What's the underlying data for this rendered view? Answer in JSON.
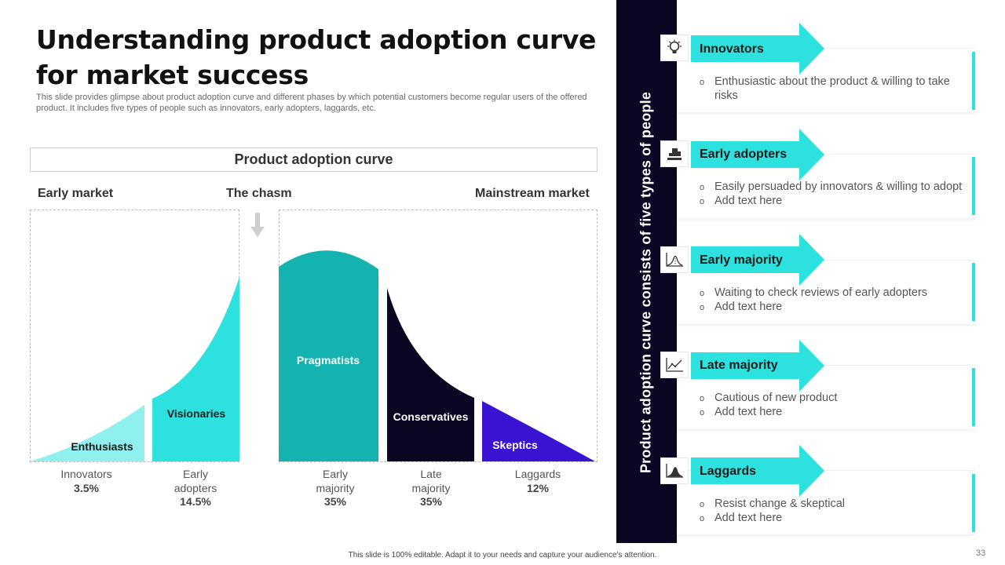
{
  "title": "Understanding product adoption curve for market success",
  "subtitle": "This slide provides glimpse about product adoption curve and different phases by which potential customers become regular users of the offered product. It includes five types of people such as innovators, early adopters, laggards, etc.",
  "diagram": {
    "header": "Product adoption curve",
    "markets": {
      "early": "Early market",
      "chasm": "The chasm",
      "mainstream": "Mainstream market"
    },
    "segments": [
      {
        "label": "Enthusiasts",
        "category": "Innovators",
        "percent": "3.5%",
        "color": "#8ff0ee"
      },
      {
        "label": "Visionaries",
        "category": "Early adopters",
        "percent": "14.5%",
        "color": "#2de2de"
      },
      {
        "label": "Pragmatists",
        "category": "Early majority",
        "percent": "35%",
        "color": "#15b3af"
      },
      {
        "label": "Conservatives",
        "category": "Late majority",
        "percent": "35%",
        "color": "#0b0622"
      },
      {
        "label": "Skeptics",
        "category": "Laggards",
        "percent": "12%",
        "color": "#3a12d2"
      }
    ]
  },
  "sidebar": {
    "text": "Product adoption curve consists of five types of people"
  },
  "cards": [
    {
      "title": "Innovators",
      "icon": "lightbulb-icon",
      "bullets": [
        "Enthusiastic about the product & willing to take risks"
      ]
    },
    {
      "title": "Early adopters",
      "icon": "podium-icon",
      "bullets": [
        "Easily persuaded by innovators & willing to adopt",
        "Add text here"
      ]
    },
    {
      "title": "Early majority",
      "icon": "bell-curve-icon",
      "bullets": [
        "Waiting to check reviews of early adopters",
        "Add text here"
      ]
    },
    {
      "title": "Late majority",
      "icon": "line-chart-icon",
      "bullets": [
        "Cautious of new product",
        "Add text here"
      ]
    },
    {
      "title": "Laggards",
      "icon": "bell-curve-icon",
      "bullets": [
        "Resist change & skeptical",
        "Add text here"
      ]
    }
  ],
  "colors": {
    "accent": "#2de2de",
    "dark": "#0b0622"
  },
  "footer": "This slide is 100% editable. Adapt it to your needs and capture your audience's attention.",
  "page_number": "33"
}
